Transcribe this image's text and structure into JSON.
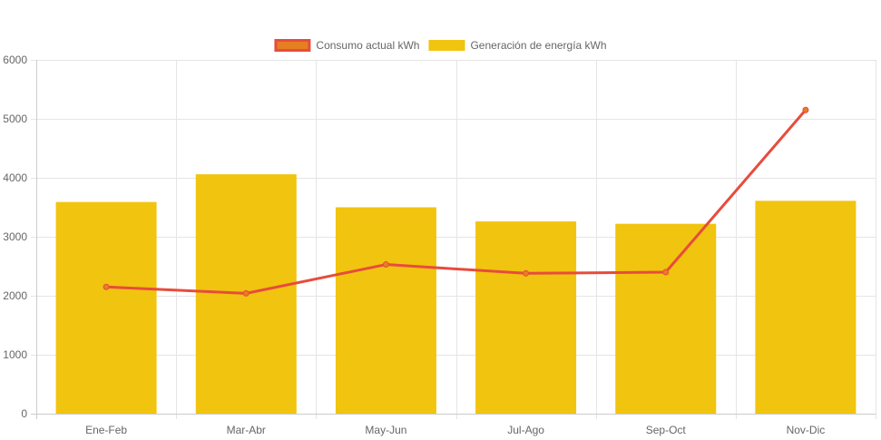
{
  "chart_data": {
    "type": "bar",
    "categories": [
      "Ene-Feb",
      "Mar-Abr",
      "May-Jun",
      "Jul-Ago",
      "Sep-Oct",
      "Nov-Dic"
    ],
    "series": [
      {
        "name": "Generación de energía kWh",
        "type": "bar",
        "color": "#f1c40f",
        "values": [
          3590,
          4060,
          3500,
          3260,
          3220,
          3610
        ]
      },
      {
        "name": "Consumo actual kWh",
        "type": "line",
        "color": "#e74c3c",
        "point_color": "#e67e22",
        "values": [
          2150,
          2040,
          2530,
          2380,
          2400,
          5150
        ]
      }
    ],
    "legend_order": [
      "Consumo actual kWh",
      "Generación de energía kWh"
    ],
    "legend_position": "top-center",
    "ylim": [
      0,
      6000
    ],
    "yticks": [
      0,
      1000,
      2000,
      3000,
      4000,
      5000,
      6000
    ],
    "grid": true,
    "title": "",
    "xlabel": "",
    "ylabel": ""
  }
}
